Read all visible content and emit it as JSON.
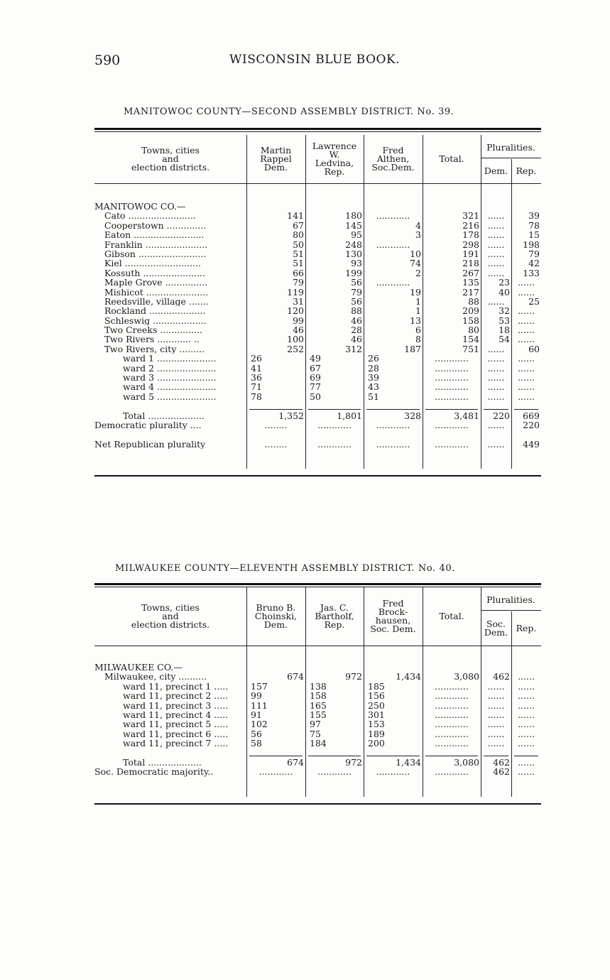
{
  "page_number": "590",
  "running_head": "WISCONSIN BLUE BOOK.",
  "tables": [
    {
      "title": "MANITOWOC COUNTY—SECOND ASSEMBLY DISTRICT. No. 39.",
      "headers": {
        "district": [
          "Towns, cities",
          "and",
          "election districts."
        ],
        "cand1": [
          "Martin",
          "Rappel",
          "Dem."
        ],
        "cand2": [
          "Lawrence",
          "W.",
          "Ledvina,",
          "Rep."
        ],
        "cand3": [
          "Fred",
          "Althen,",
          "Soc.Dem."
        ],
        "total": [
          "Total."
        ],
        "pluralities": "Pluralities.",
        "plur_a": [
          "Dem."
        ],
        "plur_b": [
          "Rep."
        ]
      },
      "rows": [
        {
          "kind": "county",
          "cells": [
            "MANITOWOC CO.—",
            "",
            "",
            "",
            "",
            "",
            ""
          ]
        },
        {
          "kind": "town",
          "cells": [
            "Cato ........................",
            "141",
            "180",
            "............",
            "321",
            "......",
            "39"
          ]
        },
        {
          "kind": "town",
          "cells": [
            "Cooperstown ..............",
            "67",
            "145",
            "4",
            "216",
            "......",
            "78"
          ]
        },
        {
          "kind": "town",
          "cells": [
            "Eaton .........................",
            "80",
            "95",
            "3",
            "178",
            "......",
            "15"
          ]
        },
        {
          "kind": "town",
          "cells": [
            "Franklin ......................",
            "50",
            "248",
            "............",
            "298",
            "......",
            "198"
          ]
        },
        {
          "kind": "town",
          "cells": [
            "Gibson ........................",
            "51",
            "130",
            "10",
            "191",
            "......",
            "79"
          ]
        },
        {
          "kind": "town",
          "cells": [
            "Kiel ...........................",
            "51",
            "93",
            "74",
            "218",
            "......",
            "42"
          ]
        },
        {
          "kind": "town",
          "cells": [
            "Kossuth ......................",
            "66",
            "199",
            "2",
            "267",
            "......",
            "133"
          ]
        },
        {
          "kind": "town",
          "cells": [
            "Maple Grove ...............",
            "79",
            "56",
            "............",
            "135",
            "23",
            "......"
          ]
        },
        {
          "kind": "town",
          "cells": [
            "Mishicot ......................",
            "119",
            "79",
            "19",
            "217",
            "40",
            "......"
          ]
        },
        {
          "kind": "town",
          "cells": [
            "Reedsville, village .......",
            "31",
            "56",
            "1",
            "88",
            "......",
            "25"
          ]
        },
        {
          "kind": "town",
          "cells": [
            "Rockland ....................",
            "120",
            "88",
            "1",
            "209",
            "32",
            "......"
          ]
        },
        {
          "kind": "town",
          "cells": [
            "Schleswig ...................",
            "99",
            "46",
            "13",
            "158",
            "53",
            "......"
          ]
        },
        {
          "kind": "town",
          "cells": [
            "Two Creeks ...............",
            "46",
            "28",
            "6",
            "80",
            "18",
            "......"
          ]
        },
        {
          "kind": "town",
          "cells": [
            "Two Rivers ............ ..",
            "100",
            "46",
            "8",
            "154",
            "54",
            "......"
          ]
        },
        {
          "kind": "town",
          "cells": [
            "Two Rivers, city .........",
            "252",
            "312",
            "187",
            "751",
            "......",
            "60"
          ]
        },
        {
          "kind": "ward",
          "cells": [
            "ward 1 .....................",
            "26",
            "49",
            "26",
            "............",
            "......",
            "......"
          ]
        },
        {
          "kind": "ward",
          "cells": [
            "ward 2 .....................",
            "41",
            "67",
            "28",
            "............",
            "......",
            "......"
          ]
        },
        {
          "kind": "ward",
          "cells": [
            "ward 3 .....................",
            "36",
            "69",
            "39",
            "............",
            "......",
            "......"
          ]
        },
        {
          "kind": "ward",
          "cells": [
            "ward 4 .....................",
            "71",
            "77",
            "43",
            "............",
            "......",
            "......"
          ]
        },
        {
          "kind": "ward",
          "cells": [
            "ward 5 .....................",
            "78",
            "50",
            "51",
            "............",
            "......",
            "......"
          ]
        },
        {
          "kind": "gap",
          "cells": [
            "",
            "",
            "",
            "",
            "",
            "",
            ""
          ]
        },
        {
          "kind": "total",
          "cells": [
            "Total ....................",
            "1,352",
            "1,801",
            "328",
            "3,481",
            "220",
            "669"
          ]
        },
        {
          "kind": "summary",
          "cells": [
            "Democratic plurality ....",
            "........",
            "............",
            "............",
            "............",
            "......",
            "220"
          ]
        },
        {
          "kind": "gap",
          "cells": [
            "",
            "",
            "",
            "",
            "",
            "",
            ""
          ]
        },
        {
          "kind": "summary",
          "cells": [
            "Net Republican plurality",
            "........",
            "............",
            "............",
            "............",
            "......",
            "449"
          ]
        }
      ]
    },
    {
      "title": "MILWAUKEE COUNTY—ELEVENTH ASSEMBLY DISTRICT. No. 40.",
      "headers": {
        "district": [
          "Towns, cities",
          "and",
          "election districts."
        ],
        "cand1": [
          "Bruno B.",
          "Choinski,",
          "Dem."
        ],
        "cand2": [
          "Jas. C.",
          "Bartholf,",
          "Rep."
        ],
        "cand3": [
          "Fred",
          "Brock-",
          "hausen,",
          "Soc. Dem."
        ],
        "total": [
          "Total."
        ],
        "pluralities": "Pluralities.",
        "plur_a": [
          "Soc.",
          "Dem."
        ],
        "plur_b": [
          "Rep."
        ]
      },
      "rows": [
        {
          "kind": "county",
          "cells": [
            "MILWAUKEE CO.—",
            "",
            "",
            "",
            "",
            "",
            ""
          ]
        },
        {
          "kind": "town",
          "cells": [
            "Milwaukee, city ..........",
            "674",
            "972",
            "1,434",
            "3,080",
            "462",
            "......"
          ]
        },
        {
          "kind": "ward",
          "cells": [
            "ward 11, precinct 1 .....",
            "157",
            "138",
            "185",
            "............",
            "......",
            "......"
          ]
        },
        {
          "kind": "ward",
          "cells": [
            "ward 11, precinct 2 .....",
            "99",
            "158",
            "156",
            "............",
            "......",
            "......"
          ]
        },
        {
          "kind": "ward",
          "cells": [
            "ward 11, precinct 3 .....",
            "111",
            "165",
            "250",
            "............",
            "......",
            "......"
          ]
        },
        {
          "kind": "ward",
          "cells": [
            "ward 11, precinct 4 .....",
            "91",
            "155",
            "301",
            "............",
            "......",
            "......"
          ]
        },
        {
          "kind": "ward",
          "cells": [
            "ward 11, precinct 5 .....",
            "102",
            "97",
            "153",
            "............",
            "......",
            "......"
          ]
        },
        {
          "kind": "ward",
          "cells": [
            "ward 11, precinct 6 .....",
            "56",
            "75",
            "189",
            "............",
            "......",
            "......"
          ]
        },
        {
          "kind": "ward",
          "cells": [
            "ward 11, precinct 7 .....",
            "58",
            "184",
            "200",
            "............",
            "......",
            "......"
          ]
        },
        {
          "kind": "gap",
          "cells": [
            "",
            "",
            "",
            "",
            "",
            "",
            ""
          ]
        },
        {
          "kind": "total",
          "cells": [
            "Total ...................",
            "674",
            "972",
            "1,434",
            "3,080",
            "462",
            "......"
          ]
        },
        {
          "kind": "summary",
          "cells": [
            "Soc. Democratic majority..",
            "............",
            "............",
            "............",
            "............",
            "462",
            "......"
          ]
        }
      ]
    }
  ]
}
